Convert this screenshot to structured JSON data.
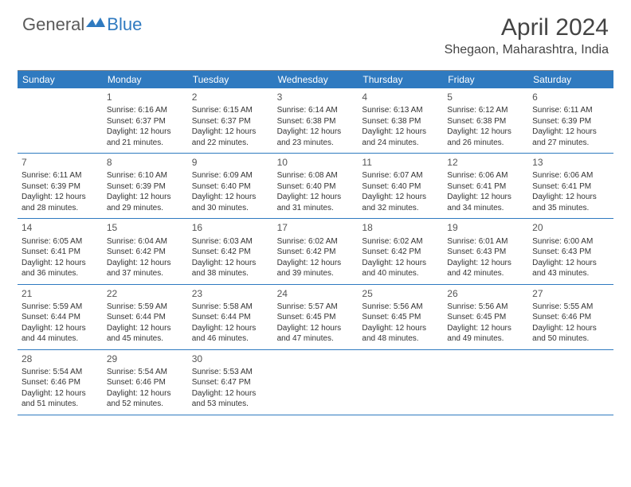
{
  "logo": {
    "general": "General",
    "blue": "Blue"
  },
  "title": "April 2024",
  "location": "Shegaon, Maharashtra, India",
  "colors": {
    "header_bg": "#2f7ac0",
    "week_border": "#2f7ac0",
    "logo_blue": "#2f7ac0",
    "logo_gray": "#5a5a5a",
    "text": "#333333"
  },
  "weekdays": [
    "Sunday",
    "Monday",
    "Tuesday",
    "Wednesday",
    "Thursday",
    "Friday",
    "Saturday"
  ],
  "weeks": [
    [
      null,
      {
        "n": "1",
        "sr": "Sunrise: 6:16 AM",
        "ss": "Sunset: 6:37 PM",
        "dl": "Daylight: 12 hours and 21 minutes."
      },
      {
        "n": "2",
        "sr": "Sunrise: 6:15 AM",
        "ss": "Sunset: 6:37 PM",
        "dl": "Daylight: 12 hours and 22 minutes."
      },
      {
        "n": "3",
        "sr": "Sunrise: 6:14 AM",
        "ss": "Sunset: 6:38 PM",
        "dl": "Daylight: 12 hours and 23 minutes."
      },
      {
        "n": "4",
        "sr": "Sunrise: 6:13 AM",
        "ss": "Sunset: 6:38 PM",
        "dl": "Daylight: 12 hours and 24 minutes."
      },
      {
        "n": "5",
        "sr": "Sunrise: 6:12 AM",
        "ss": "Sunset: 6:38 PM",
        "dl": "Daylight: 12 hours and 26 minutes."
      },
      {
        "n": "6",
        "sr": "Sunrise: 6:11 AM",
        "ss": "Sunset: 6:39 PM",
        "dl": "Daylight: 12 hours and 27 minutes."
      }
    ],
    [
      {
        "n": "7",
        "sr": "Sunrise: 6:11 AM",
        "ss": "Sunset: 6:39 PM",
        "dl": "Daylight: 12 hours and 28 minutes."
      },
      {
        "n": "8",
        "sr": "Sunrise: 6:10 AM",
        "ss": "Sunset: 6:39 PM",
        "dl": "Daylight: 12 hours and 29 minutes."
      },
      {
        "n": "9",
        "sr": "Sunrise: 6:09 AM",
        "ss": "Sunset: 6:40 PM",
        "dl": "Daylight: 12 hours and 30 minutes."
      },
      {
        "n": "10",
        "sr": "Sunrise: 6:08 AM",
        "ss": "Sunset: 6:40 PM",
        "dl": "Daylight: 12 hours and 31 minutes."
      },
      {
        "n": "11",
        "sr": "Sunrise: 6:07 AM",
        "ss": "Sunset: 6:40 PM",
        "dl": "Daylight: 12 hours and 32 minutes."
      },
      {
        "n": "12",
        "sr": "Sunrise: 6:06 AM",
        "ss": "Sunset: 6:41 PM",
        "dl": "Daylight: 12 hours and 34 minutes."
      },
      {
        "n": "13",
        "sr": "Sunrise: 6:06 AM",
        "ss": "Sunset: 6:41 PM",
        "dl": "Daylight: 12 hours and 35 minutes."
      }
    ],
    [
      {
        "n": "14",
        "sr": "Sunrise: 6:05 AM",
        "ss": "Sunset: 6:41 PM",
        "dl": "Daylight: 12 hours and 36 minutes."
      },
      {
        "n": "15",
        "sr": "Sunrise: 6:04 AM",
        "ss": "Sunset: 6:42 PM",
        "dl": "Daylight: 12 hours and 37 minutes."
      },
      {
        "n": "16",
        "sr": "Sunrise: 6:03 AM",
        "ss": "Sunset: 6:42 PM",
        "dl": "Daylight: 12 hours and 38 minutes."
      },
      {
        "n": "17",
        "sr": "Sunrise: 6:02 AM",
        "ss": "Sunset: 6:42 PM",
        "dl": "Daylight: 12 hours and 39 minutes."
      },
      {
        "n": "18",
        "sr": "Sunrise: 6:02 AM",
        "ss": "Sunset: 6:42 PM",
        "dl": "Daylight: 12 hours and 40 minutes."
      },
      {
        "n": "19",
        "sr": "Sunrise: 6:01 AM",
        "ss": "Sunset: 6:43 PM",
        "dl": "Daylight: 12 hours and 42 minutes."
      },
      {
        "n": "20",
        "sr": "Sunrise: 6:00 AM",
        "ss": "Sunset: 6:43 PM",
        "dl": "Daylight: 12 hours and 43 minutes."
      }
    ],
    [
      {
        "n": "21",
        "sr": "Sunrise: 5:59 AM",
        "ss": "Sunset: 6:44 PM",
        "dl": "Daylight: 12 hours and 44 minutes."
      },
      {
        "n": "22",
        "sr": "Sunrise: 5:59 AM",
        "ss": "Sunset: 6:44 PM",
        "dl": "Daylight: 12 hours and 45 minutes."
      },
      {
        "n": "23",
        "sr": "Sunrise: 5:58 AM",
        "ss": "Sunset: 6:44 PM",
        "dl": "Daylight: 12 hours and 46 minutes."
      },
      {
        "n": "24",
        "sr": "Sunrise: 5:57 AM",
        "ss": "Sunset: 6:45 PM",
        "dl": "Daylight: 12 hours and 47 minutes."
      },
      {
        "n": "25",
        "sr": "Sunrise: 5:56 AM",
        "ss": "Sunset: 6:45 PM",
        "dl": "Daylight: 12 hours and 48 minutes."
      },
      {
        "n": "26",
        "sr": "Sunrise: 5:56 AM",
        "ss": "Sunset: 6:45 PM",
        "dl": "Daylight: 12 hours and 49 minutes."
      },
      {
        "n": "27",
        "sr": "Sunrise: 5:55 AM",
        "ss": "Sunset: 6:46 PM",
        "dl": "Daylight: 12 hours and 50 minutes."
      }
    ],
    [
      {
        "n": "28",
        "sr": "Sunrise: 5:54 AM",
        "ss": "Sunset: 6:46 PM",
        "dl": "Daylight: 12 hours and 51 minutes."
      },
      {
        "n": "29",
        "sr": "Sunrise: 5:54 AM",
        "ss": "Sunset: 6:46 PM",
        "dl": "Daylight: 12 hours and 52 minutes."
      },
      {
        "n": "30",
        "sr": "Sunrise: 5:53 AM",
        "ss": "Sunset: 6:47 PM",
        "dl": "Daylight: 12 hours and 53 minutes."
      },
      null,
      null,
      null,
      null
    ]
  ]
}
